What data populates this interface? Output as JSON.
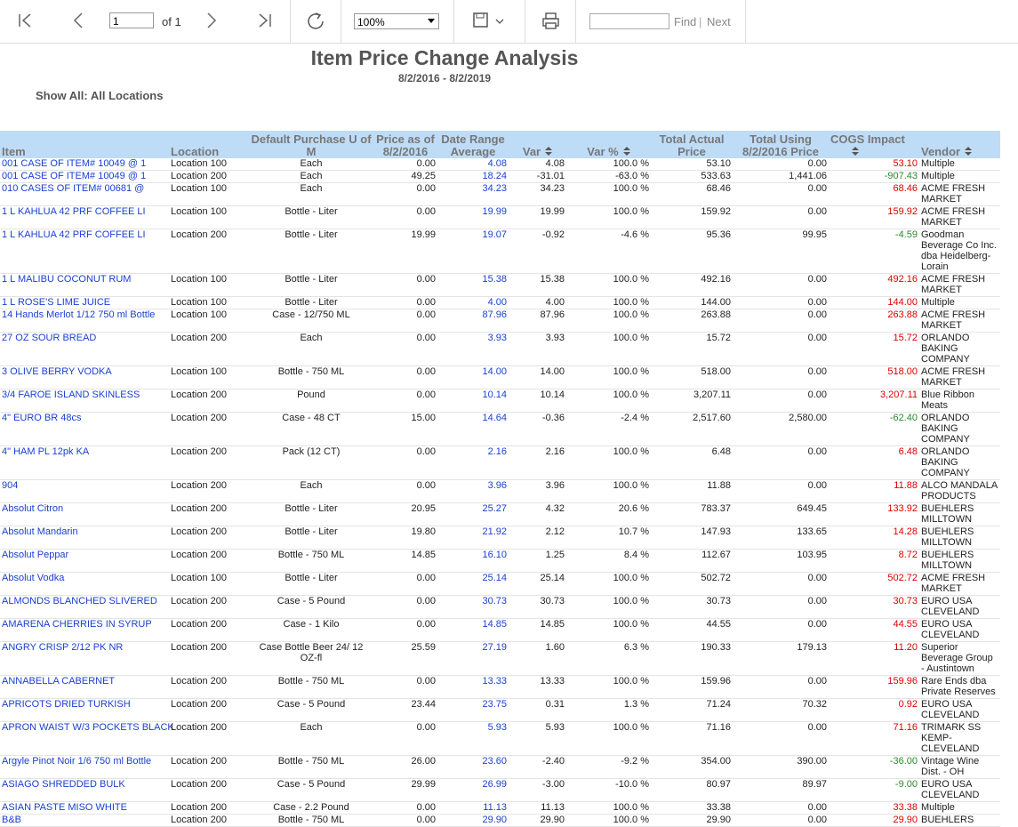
{
  "toolbar": {
    "page": "1",
    "of": "of 1",
    "zoom": "100%",
    "find": "Find",
    "separator": "|",
    "next": "Next"
  },
  "report": {
    "title": "Item Price Change Analysis",
    "date_range": "8/2/2016 - 8/2/2019",
    "filter": "Show All: All Locations"
  },
  "table": {
    "headers": [
      "Item",
      "Location",
      "Default Purchase U of M",
      "Price as of 8/2/2016",
      "Date Range Average",
      "Var",
      "Var %",
      "Total Actual Price",
      "Total Using 8/2/2016 Price",
      "COGS Impact",
      "Vendor"
    ],
    "rows": [
      [
        "001 CASE  OF ITEM# 10049  @  1",
        "Location 100",
        "Each",
        "0.00",
        "4.08",
        "4.08",
        "100.0 %",
        "53.10",
        "0.00",
        "53.10",
        "Multiple"
      ],
      [
        "001 CASE  OF ITEM# 10049  @  1",
        "Location 200",
        "Each",
        "49.25",
        "18.24",
        "-31.01",
        "-63.0 %",
        "533.63",
        "1,441.06",
        "-907.43",
        "Multiple"
      ],
      [
        "010 CASES OF ITEM# 00681  @",
        "Location 100",
        "Each",
        "0.00",
        "34.23",
        "34.23",
        "100.0 %",
        "68.46",
        "0.00",
        "68.46",
        "ACME FRESH MARKET"
      ],
      [
        "1 L    KAHLUA 42 PRF COFFEE LI",
        "Location 100",
        "Bottle - Liter",
        "0.00",
        "19.99",
        "19.99",
        "100.0 %",
        "159.92",
        "0.00",
        "159.92",
        "ACME FRESH MARKET"
      ],
      [
        "1 L    KAHLUA 42 PRF COFFEE LI",
        "Location 200",
        "Bottle - Liter",
        "19.99",
        "19.07",
        "-0.92",
        "-4.6 %",
        "95.36",
        "99.95",
        "-4.59",
        "Goodman Beverage Co Inc. dba Heidelberg- Lorain"
      ],
      [
        "1 L    MALIBU COCONUT RUM",
        "Location 100",
        "Bottle - Liter",
        "0.00",
        "15.38",
        "15.38",
        "100.0 %",
        "492.16",
        "0.00",
        "492.16",
        "ACME FRESH MARKET"
      ],
      [
        "1 L    ROSE'S LIME JUICE",
        "Location 100",
        "Bottle - Liter",
        "0.00",
        "4.00",
        "4.00",
        "100.0 %",
        "144.00",
        "0.00",
        "144.00",
        "Multiple"
      ],
      [
        "14 Hands Merlot 1/12 750 ml Bottle",
        "Location 100",
        "Case - 12/750 ML",
        "0.00",
        "87.96",
        "87.96",
        "100.0 %",
        "263.88",
        "0.00",
        "263.88",
        "ACME FRESH MARKET"
      ],
      [
        "27 OZ SOUR BREAD",
        "Location 200",
        "Each",
        "0.00",
        "3.93",
        "3.93",
        "100.0 %",
        "15.72",
        "0.00",
        "15.72",
        "ORLANDO BAKING COMPANY"
      ],
      [
        "3 OLIVE BERRY VODKA",
        "Location 100",
        "Bottle - 750 ML",
        "0.00",
        "14.00",
        "14.00",
        "100.0 %",
        "518.00",
        "0.00",
        "518.00",
        "ACME FRESH MARKET"
      ],
      [
        "3/4 FAROE ISLAND SKINLESS",
        "Location 200",
        "Pound",
        "0.00",
        "10.14",
        "10.14",
        "100.0 %",
        "3,207.11",
        "0.00",
        "3,207.11",
        "Blue Ribbon Meats"
      ],
      [
        "4\" EURO BR 48cs",
        "Location 200",
        "Case - 48 CT",
        "15.00",
        "14.64",
        "-0.36",
        "-2.4 %",
        "2,517.60",
        "2,580.00",
        "-62.40",
        "ORLANDO BAKING COMPANY"
      ],
      [
        "4\" HAM PL 12pk KA",
        "Location 200",
        "Pack (12 CT)",
        "0.00",
        "2.16",
        "2.16",
        "100.0 %",
        "6.48",
        "0.00",
        "6.48",
        "ORLANDO BAKING COMPANY"
      ],
      [
        "904",
        "Location 200",
        "Each",
        "0.00",
        "3.96",
        "3.96",
        "100.0 %",
        "11.88",
        "0.00",
        "11.88",
        "ALCO MANDALA PRODUCTS"
      ],
      [
        "Absolut Citron",
        "Location 200",
        "Bottle - Liter",
        "20.95",
        "25.27",
        "4.32",
        "20.6 %",
        "783.37",
        "649.45",
        "133.92",
        "BUEHLERS MILLTOWN"
      ],
      [
        "Absolut Mandarin",
        "Location 200",
        "Bottle - Liter",
        "19.80",
        "21.92",
        "2.12",
        "10.7 %",
        "147.93",
        "133.65",
        "14.28",
        "BUEHLERS MILLTOWN"
      ],
      [
        "Absolut Peppar",
        "Location 200",
        "Bottle - 750 ML",
        "14.85",
        "16.10",
        "1.25",
        "8.4 %",
        "112.67",
        "103.95",
        "8.72",
        "BUEHLERS MILLTOWN"
      ],
      [
        "Absolut Vodka",
        "Location 100",
        "Bottle - Liter",
        "0.00",
        "25.14",
        "25.14",
        "100.0 %",
        "502.72",
        "0.00",
        "502.72",
        "ACME FRESH MARKET"
      ],
      [
        "ALMONDS BLANCHED SLIVERED",
        "Location 200",
        "Case - 5 Pound",
        "0.00",
        "30.73",
        "30.73",
        "100.0 %",
        "30.73",
        "0.00",
        "30.73",
        "EURO USA CLEVELAND"
      ],
      [
        "AMARENA CHERRIES IN SYRUP",
        "Location 200",
        "Case -  1 Kilo",
        "0.00",
        "14.85",
        "14.85",
        "100.0 %",
        "44.55",
        "0.00",
        "44.55",
        "EURO USA CLEVELAND"
      ],
      [
        "ANGRY CRISP 2/12 PK NR",
        "Location 200",
        "Case Bottle Beer 24/ 12 OZ-fl",
        "25.59",
        "27.19",
        "1.60",
        "6.3 %",
        "190.33",
        "179.13",
        "11.20",
        "Superior Beverage Group - Austintown"
      ],
      [
        "ANNABELLA CABERNET",
        "Location 200",
        "Bottle - 750 ML",
        "0.00",
        "13.33",
        "13.33",
        "100.0 %",
        "159.96",
        "0.00",
        "159.96",
        "Rare Ends dba Private Reserves"
      ],
      [
        "APRICOTS DRIED TURKISH",
        "Location 200",
        "Case - 5 Pound",
        "23.44",
        "23.75",
        "0.31",
        "1.3 %",
        "71.24",
        "70.32",
        "0.92",
        "EURO USA CLEVELAND"
      ],
      [
        "APRON WAIST W/3 POCKETS BLACK",
        "Location 200",
        "Each",
        "0.00",
        "5.93",
        "5.93",
        "100.0 %",
        "71.16",
        "0.00",
        "71.16",
        "TRIMARK SS KEMP-CLEVELAND"
      ],
      [
        "Argyle Pinot Noir 1/6 750 ml Bottle",
        "Location 200",
        "Bottle - 750 ML",
        "26.00",
        "23.60",
        "-2.40",
        "-9.2 %",
        "354.00",
        "390.00",
        "-36.00",
        "Vintage Wine Dist. - OH"
      ],
      [
        "ASIAGO SHREDDED BULK",
        "Location 200",
        "Case - 5 Pound",
        "29.99",
        "26.99",
        "-3.00",
        "-10.0 %",
        "80.97",
        "89.97",
        "-9.00",
        "EURO USA CLEVELAND"
      ],
      [
        "ASIAN PASTE MISO WHITE",
        "Location 200",
        "Case - 2.2 Pound",
        "0.00",
        "11.13",
        "11.13",
        "100.0 %",
        "33.38",
        "0.00",
        "33.38",
        "Multiple"
      ],
      [
        "B&B",
        "Location 200",
        "Bottle - 750 ML",
        "0.00",
        "29.90",
        "29.90",
        "100.0 %",
        "29.90",
        "0.00",
        "29.90",
        "BUEHLERS"
      ]
    ]
  }
}
